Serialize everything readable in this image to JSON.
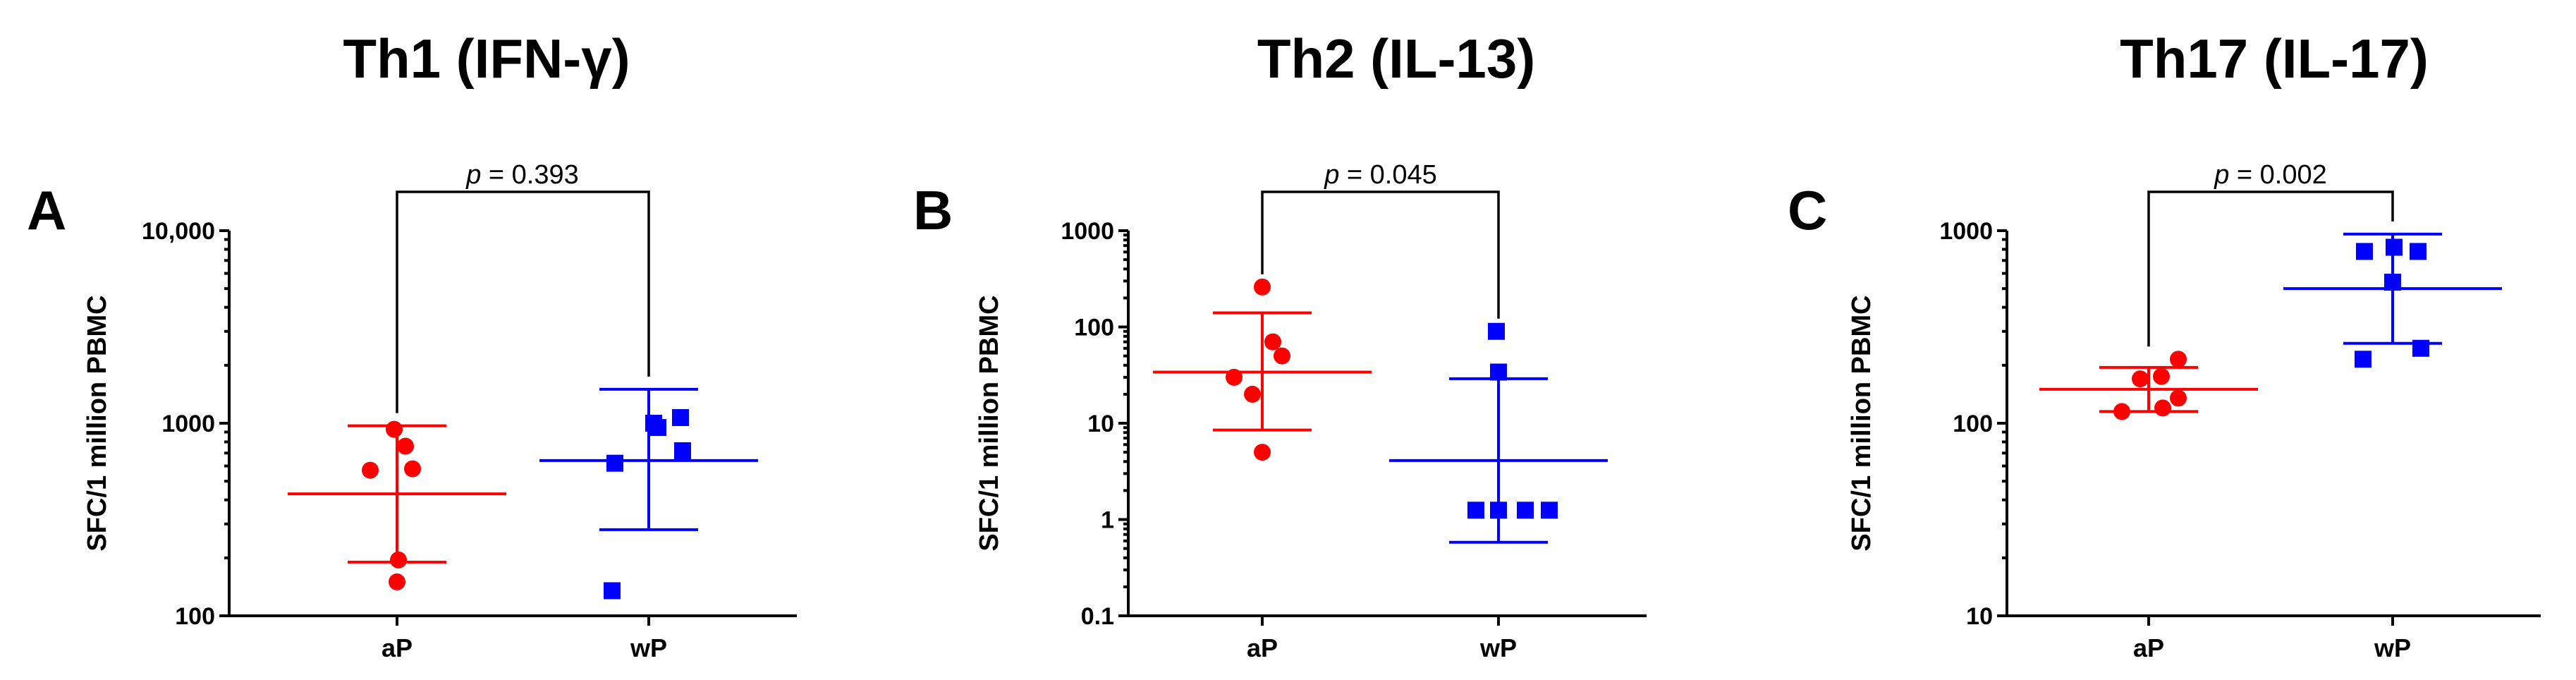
{
  "chart_data": [
    {
      "type": "scatter",
      "panel_letter": "A",
      "title": "Th1 (IFN-γ)",
      "ylabel": "SFC/1 million PBMC",
      "xlabel": "",
      "yscale": "log",
      "ylim": [
        100,
        10000
      ],
      "yticks": [
        100,
        1000,
        10000
      ],
      "ytick_labels": [
        "100",
        "1000",
        "10,000"
      ],
      "categories": [
        "aP",
        "wP"
      ],
      "p_prefix": "p",
      "p_value": "= 0.393",
      "series": [
        {
          "name": "aP",
          "color": "#ff0000",
          "marker": "circle",
          "values": [
            150,
            195,
            570,
            580,
            760,
            930
          ],
          "mean": 430,
          "error_low": 190,
          "error_high": 970
        },
        {
          "name": "wP",
          "color": "#0000ff",
          "marker": "square",
          "values": [
            135,
            620,
            720,
            950,
            1000,
            1070
          ],
          "mean": 640,
          "error_low": 280,
          "error_high": 1500
        }
      ]
    },
    {
      "type": "scatter",
      "panel_letter": "B",
      "title": "Th2 (IL-13)",
      "ylabel": "SFC/1 million PBMC",
      "xlabel": "",
      "yscale": "log",
      "ylim": [
        0.1,
        1000
      ],
      "yticks": [
        0.1,
        1,
        10,
        100,
        1000
      ],
      "ytick_labels": [
        "0.1",
        "1",
        "10",
        "100",
        "1000"
      ],
      "categories": [
        "aP",
        "wP"
      ],
      "p_prefix": "p",
      "p_value": "= 0.045",
      "series": [
        {
          "name": "aP",
          "color": "#ff0000",
          "marker": "circle",
          "values": [
            5,
            20,
            30,
            50,
            70,
            260
          ],
          "mean": 34,
          "error_low": 8.5,
          "error_high": 140
        },
        {
          "name": "wP",
          "color": "#0000ff",
          "marker": "square",
          "values": [
            1.25,
            1.25,
            1.25,
            1.25,
            34,
            90
          ],
          "mean": 4.1,
          "error_low": 0.58,
          "error_high": 29
        }
      ]
    },
    {
      "type": "scatter",
      "panel_letter": "C",
      "title": "Th17 (IL-17)",
      "ylabel": "SFC/1 million PBMC",
      "xlabel": "",
      "yscale": "log",
      "ylim": [
        10,
        1000
      ],
      "yticks": [
        10,
        100,
        1000
      ],
      "ytick_labels": [
        "10",
        "100",
        "1000"
      ],
      "categories": [
        "aP",
        "wP"
      ],
      "p_prefix": "p",
      "p_value": "= 0.002",
      "series": [
        {
          "name": "aP",
          "color": "#ff0000",
          "marker": "circle",
          "values": [
            115,
            120,
            135,
            170,
            175,
            215
          ],
          "mean": 150,
          "error_low": 115,
          "error_high": 195
        },
        {
          "name": "wP",
          "color": "#0000ff",
          "marker": "square",
          "values": [
            215,
            245,
            540,
            780,
            780,
            820
          ],
          "mean": 500,
          "error_low": 260,
          "error_high": 960
        }
      ]
    }
  ]
}
